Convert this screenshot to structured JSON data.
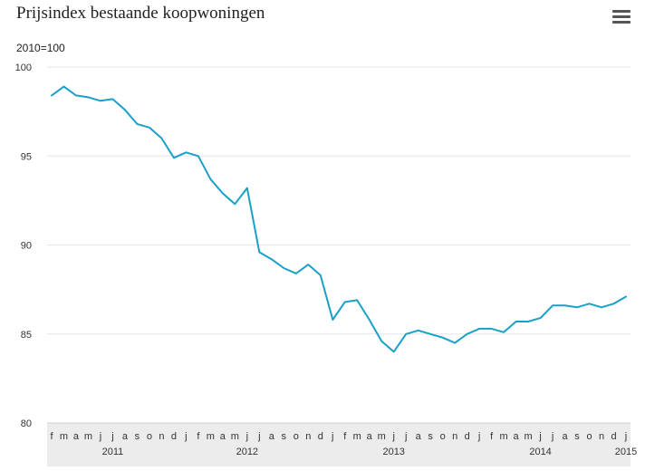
{
  "header": {
    "title": "Prijsindex bestaande koopwoningen",
    "menu_icon": "hamburger-menu-icon"
  },
  "chart_data": {
    "type": "line",
    "title": "Prijsindex bestaande koopwoningen",
    "unit_label": "2010=100",
    "xlabel": "",
    "ylabel": "",
    "ylim": [
      80,
      100
    ],
    "yticks": [
      100,
      95,
      90,
      85,
      80
    ],
    "month_labels": [
      "f",
      "m",
      "a",
      "m",
      "j",
      "j",
      "a",
      "s",
      "o",
      "n",
      "d",
      "j",
      "f",
      "m",
      "a",
      "m",
      "j",
      "j",
      "a",
      "s",
      "o",
      "n",
      "d",
      "j",
      "f",
      "m",
      "a",
      "m",
      "j",
      "j",
      "a",
      "s",
      "o",
      "n",
      "d",
      "j",
      "f",
      "m",
      "a",
      "m",
      "j",
      "j",
      "a",
      "s",
      "o",
      "n",
      "d",
      "j"
    ],
    "year_labels": [
      {
        "label": "2011",
        "at_index": 5
      },
      {
        "label": "2012",
        "at_index": 16
      },
      {
        "label": "2013",
        "at_index": 28
      },
      {
        "label": "2014",
        "at_index": 40
      },
      {
        "label": "2015",
        "at_index": 47
      }
    ],
    "x": [
      "2011-02",
      "2011-03",
      "2011-04",
      "2011-05",
      "2011-06",
      "2011-07",
      "2011-08",
      "2011-09",
      "2011-10",
      "2011-11",
      "2011-12",
      "2012-01",
      "2012-02",
      "2012-03",
      "2012-04",
      "2012-05",
      "2012-06",
      "2012-07",
      "2012-08",
      "2012-09",
      "2012-10",
      "2012-11",
      "2012-12",
      "2013-01",
      "2013-02",
      "2013-03",
      "2013-04",
      "2013-05",
      "2013-06",
      "2013-07",
      "2013-08",
      "2013-09",
      "2013-10",
      "2013-11",
      "2013-12",
      "2014-01",
      "2014-02",
      "2014-03",
      "2014-04",
      "2014-05",
      "2014-06",
      "2014-07",
      "2014-08",
      "2014-09",
      "2014-10",
      "2014-11",
      "2014-12",
      "2015-01"
    ],
    "series": [
      {
        "color": "#1aa0c8",
        "values": [
          98.4,
          98.9,
          98.4,
          98.3,
          98.1,
          98.2,
          97.6,
          96.8,
          96.6,
          96.0,
          94.9,
          95.2,
          95.0,
          93.7,
          92.9,
          92.3,
          93.2,
          89.6,
          89.2,
          88.7,
          88.4,
          88.9,
          88.3,
          85.8,
          86.8,
          86.9,
          85.8,
          84.6,
          84.0,
          85.0,
          85.2,
          85.0,
          84.8,
          84.5,
          85.0,
          85.3,
          85.3,
          85.1,
          85.7,
          85.7,
          85.9,
          86.6,
          86.6,
          86.5,
          86.7,
          86.5,
          86.7,
          87.1
        ]
      }
    ],
    "grid": true,
    "legend": "none"
  }
}
